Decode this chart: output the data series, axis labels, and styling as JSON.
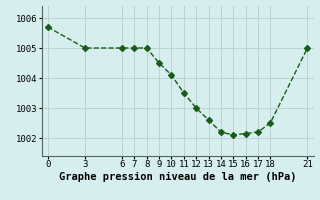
{
  "x": [
    0,
    3,
    6,
    7,
    8,
    9,
    10,
    11,
    12,
    13,
    14,
    15,
    16,
    17,
    18,
    21
  ],
  "y": [
    1005.7,
    1005.0,
    1005.0,
    1005.0,
    1005.0,
    1004.5,
    1004.1,
    1003.5,
    1003.0,
    1002.6,
    1002.2,
    1002.1,
    1002.15,
    1002.2,
    1002.5,
    1005.0
  ],
  "xticks": [
    0,
    3,
    6,
    7,
    8,
    9,
    10,
    11,
    12,
    13,
    14,
    15,
    16,
    17,
    18,
    21
  ],
  "yticks": [
    1002,
    1003,
    1004,
    1005,
    1006
  ],
  "ylim": [
    1001.4,
    1006.4
  ],
  "xlim": [
    -0.5,
    21.5
  ],
  "line_color": "#1a5c1a",
  "marker": "D",
  "marker_size": 3,
  "background_color": "#d6eeee",
  "grid_color": "#bbcccc",
  "xlabel": "Graphe pression niveau de la mer (hPa)",
  "xlabel_fontsize": 7.5,
  "tick_fontsize": 6.5,
  "line_width": 1.0
}
